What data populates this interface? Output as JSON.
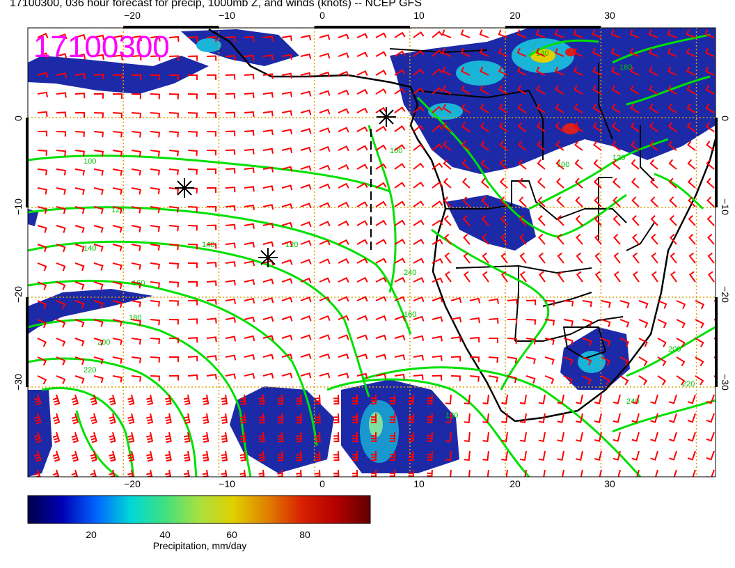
{
  "title": "17100300, 036 hour forecast for precip, 1000mb Z, and winds (knots) -- NCEP GFS",
  "stamp": "17100300",
  "map": {
    "lon_range": [
      -30,
      42
    ],
    "lat_range": [
      -40,
      10
    ],
    "lon_ticks": [
      "−20",
      "−10",
      "0",
      "10",
      "20",
      "30"
    ],
    "lat_ticks": [
      "0",
      "−10",
      "−20",
      "−30"
    ],
    "grid": "dotted orange every 10 degrees",
    "colors": {
      "contour": "#00e000",
      "barb": "#ff0000",
      "coast": "#000000",
      "precip_light": "#1d2aa8",
      "precip_mid": "#19b4d8",
      "precip_heavy": "#d82020",
      "grid": "#e0a000",
      "stamp": "#ff00ff"
    },
    "contour_labels": [
      "100",
      "120",
      "140",
      "160",
      "180",
      "200",
      "220",
      "240"
    ]
  },
  "colorbar": {
    "label": "Precipitation, mm/day",
    "tick_labels": [
      "20",
      "40",
      "60",
      "80"
    ],
    "colors": [
      "#00004a",
      "#0000b4",
      "#0064ff",
      "#00d8d8",
      "#40e080",
      "#a8e040",
      "#e0d000",
      "#e08000",
      "#d82000",
      "#b40000",
      "#600000"
    ]
  }
}
